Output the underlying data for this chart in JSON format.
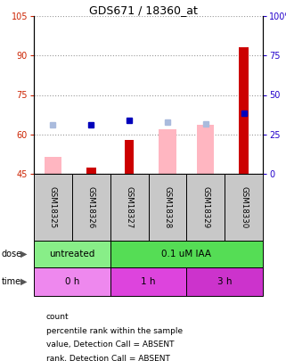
{
  "title": "GDS671 / 18360_at",
  "samples": [
    "GSM18325",
    "GSM18326",
    "GSM18327",
    "GSM18328",
    "GSM18329",
    "GSM18330"
  ],
  "ylim_left": [
    45,
    105
  ],
  "ylim_right": [
    0,
    100
  ],
  "yticks_left": [
    45,
    60,
    75,
    90,
    105
  ],
  "yticks_right": [
    0,
    25,
    50,
    75,
    100
  ],
  "ytick_labels_right": [
    "0",
    "25",
    "50",
    "75",
    "100%"
  ],
  "red_bars": [
    null,
    47.5,
    58.0,
    null,
    null,
    93.0
  ],
  "pink_bars": [
    51.5,
    null,
    null,
    62.0,
    63.5,
    null
  ],
  "blue_dots_y": [
    null,
    63.5,
    65.5,
    null,
    null,
    68.0
  ],
  "light_blue_y": [
    63.5,
    null,
    null,
    64.5,
    64.0,
    null
  ],
  "left_tick_color": "#CC2200",
  "right_tick_color": "#2200CC",
  "red_bar_color": "#CC0000",
  "pink_bar_color": "#FFB6C1",
  "blue_dot_color": "#0000BB",
  "light_blue_color": "#AABBDD",
  "sample_bg_color": "#C8C8C8",
  "dose_colors": [
    "#88EE88",
    "#55DD55"
  ],
  "dose_labels": [
    "untreated",
    "0.1 uM IAA"
  ],
  "dose_ranges": [
    [
      0,
      2
    ],
    [
      2,
      6
    ]
  ],
  "time_colors": [
    "#EE88EE",
    "#DD44DD",
    "#CC33CC"
  ],
  "time_labels": [
    "0 h",
    "1 h",
    "3 h"
  ],
  "time_ranges": [
    [
      0,
      2
    ],
    [
      2,
      4
    ],
    [
      4,
      6
    ]
  ],
  "legend_colors": [
    "#CC0000",
    "#0000BB",
    "#FFB6C1",
    "#AABBDD"
  ],
  "legend_labels": [
    "count",
    "percentile rank within the sample",
    "value, Detection Call = ABSENT",
    "rank, Detection Call = ABSENT"
  ]
}
